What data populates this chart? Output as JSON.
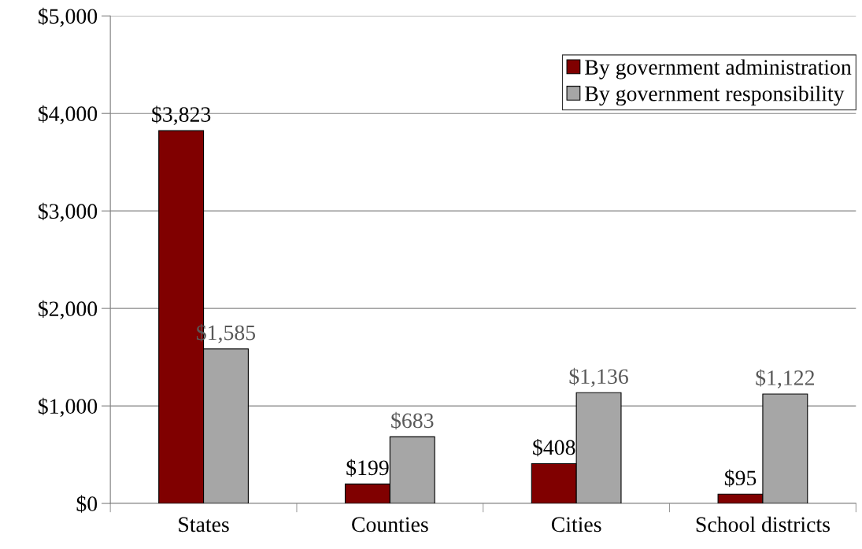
{
  "chart_data": {
    "type": "bar",
    "categories": [
      "States",
      "Counties",
      "Cities",
      "School districts"
    ],
    "series": [
      {
        "name": "By government administration",
        "color": "#800000",
        "values": [
          3823,
          199,
          408,
          95
        ],
        "value_labels": [
          "$3,823",
          "$199",
          "$408",
          "$95"
        ]
      },
      {
        "name": "By government responsibility",
        "color": "#a6a6a6",
        "values": [
          1585,
          683,
          1136,
          1122
        ],
        "value_labels": [
          "$1,585",
          "$683",
          "$1,136",
          "$1,122"
        ]
      }
    ],
    "ylim": [
      0,
      5000
    ],
    "yticks": [
      {
        "value": 0,
        "label": "$0"
      },
      {
        "value": 1000,
        "label": "$1,000"
      },
      {
        "value": 2000,
        "label": "$2,000"
      },
      {
        "value": 3000,
        "label": "$3,000"
      },
      {
        "value": 4000,
        "label": "$4,000"
      },
      {
        "value": 5000,
        "label": "$5,000"
      }
    ],
    "grid": "y",
    "legend": "top right"
  }
}
